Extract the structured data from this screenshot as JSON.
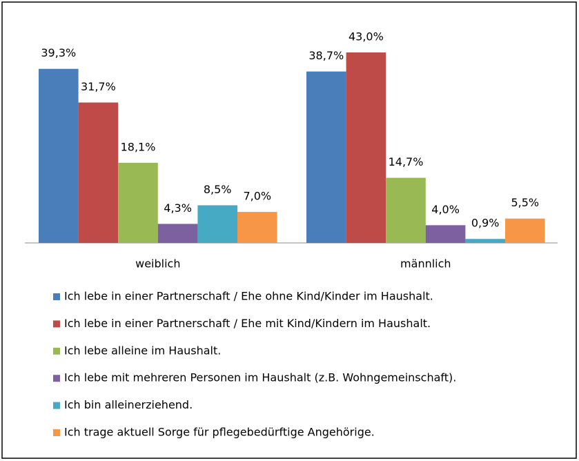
{
  "chart_data": {
    "type": "bar",
    "categories": [
      "weiblich",
      "männlich"
    ],
    "series": [
      {
        "name": "Ich lebe in einer Partnerschaft / Ehe ohne Kind/Kinder im Haushalt.",
        "color": "#4a7ebb",
        "values": [
          39.3,
          38.7
        ],
        "value_labels": [
          "39,3%",
          "38,7%"
        ]
      },
      {
        "name": "Ich lebe in einer Partnerschaft / Ehe mit Kind/Kindern im Haushalt.",
        "color": "#be4b48",
        "values": [
          31.7,
          43.0
        ],
        "value_labels": [
          "31,7%",
          "43,0%"
        ]
      },
      {
        "name": "Ich lebe alleine im Haushalt.",
        "color": "#98b954",
        "values": [
          18.1,
          14.7
        ],
        "value_labels": [
          "18,1%",
          "14,7%"
        ]
      },
      {
        "name": "Ich lebe mit mehreren Personen im Haushalt (z.B. Wohngemeinschaft).",
        "color": "#7d60a0",
        "values": [
          4.3,
          4.0
        ],
        "value_labels": [
          "4,3%",
          "4,0%"
        ]
      },
      {
        "name": "Ich bin alleinerziehend.",
        "color": "#46aac5",
        "values": [
          8.5,
          0.9
        ],
        "value_labels": [
          "8,5%",
          "0,9%"
        ]
      },
      {
        "name": "Ich trage aktuell Sorge für pflegebedürftige Angehörige.",
        "color": "#f79646",
        "values": [
          7.0,
          5.5
        ],
        "value_labels": [
          "7,0%",
          "5,5%"
        ]
      }
    ],
    "legend": "bottom"
  }
}
